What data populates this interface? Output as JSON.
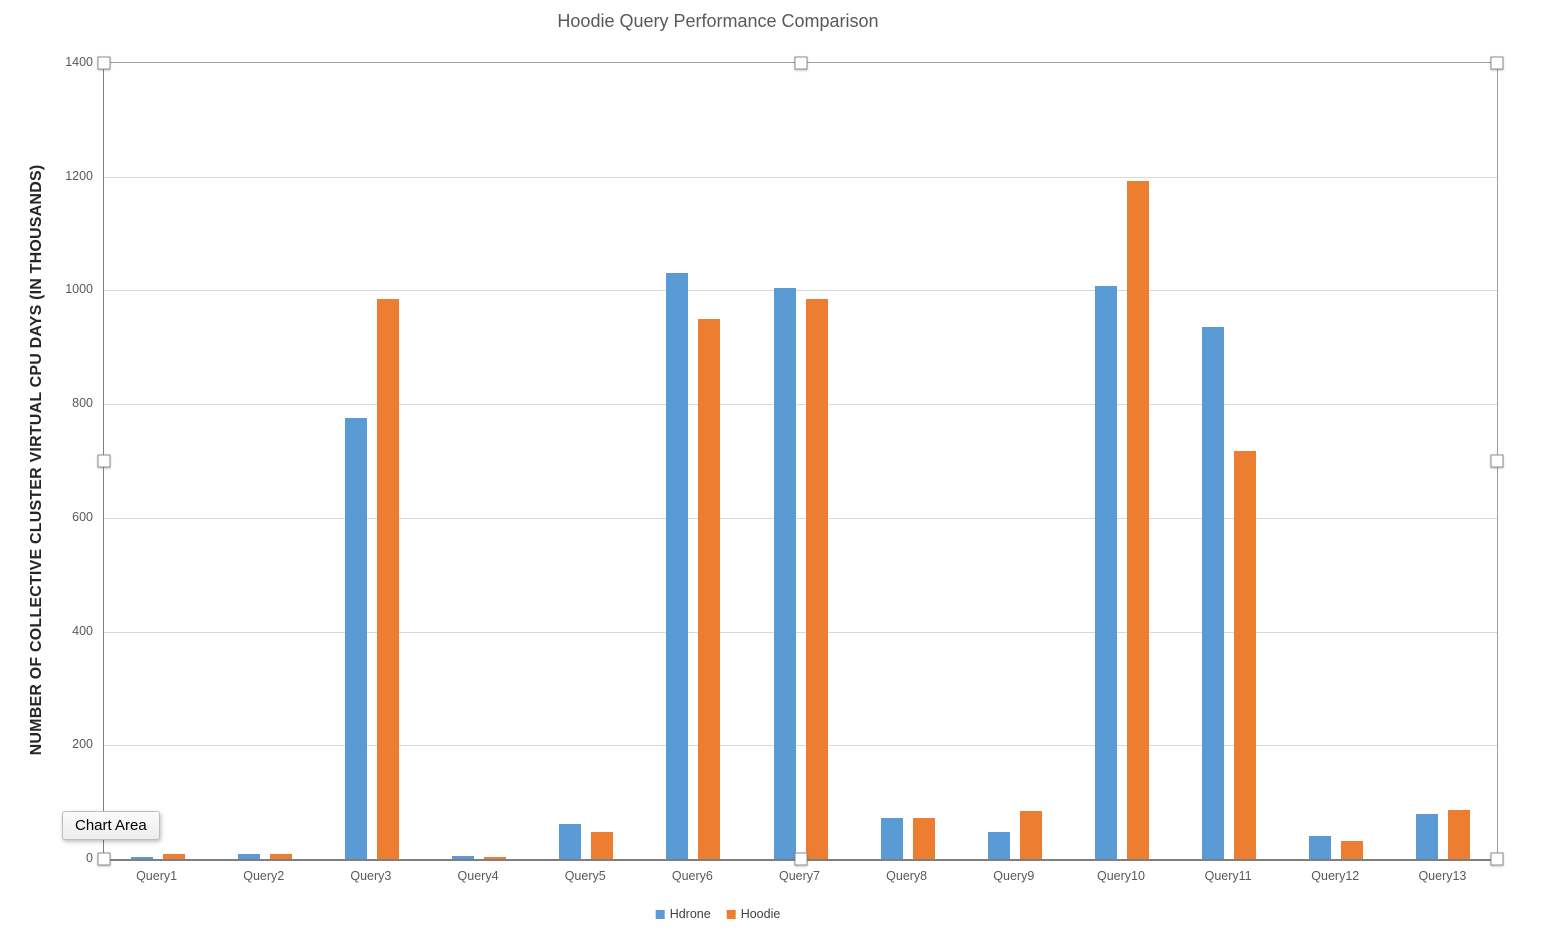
{
  "app": {
    "tooltip": "Chart Area"
  },
  "colors": {
    "grid": "#d9d9d9",
    "axis_text": "#595959",
    "title_text": "#595959",
    "series_blue": "#5B9BD5",
    "series_orange": "#ED7D31"
  },
  "chart_data": {
    "type": "bar",
    "title": "Hoodie Query Performance Comparison",
    "xlabel": "",
    "ylabel": "NUMBER OF COLLECTIVE CLUSTER VIRTUAL CPU DAYS (IN THOUSANDS)",
    "categories": [
      "Query1",
      "Query2",
      "Query3",
      "Query4",
      "Query5",
      "Query6",
      "Query7",
      "Query8",
      "Query9",
      "Query10",
      "Query11",
      "Query12",
      "Query13"
    ],
    "series": [
      {
        "name": "Hdrone",
        "color": "#5B9BD5",
        "values": [
          4,
          9,
          775,
          5,
          62,
          1030,
          1005,
          73,
          48,
          1008,
          935,
          40,
          79
        ]
      },
      {
        "name": "Hoodie",
        "color": "#ED7D31",
        "values": [
          8,
          8,
          985,
          4,
          48,
          950,
          985,
          72,
          84,
          1193,
          718,
          32,
          87
        ]
      }
    ],
    "ylim": [
      0,
      1400
    ],
    "ytick_step": 200,
    "grid": true,
    "legend_position": "bottom"
  }
}
